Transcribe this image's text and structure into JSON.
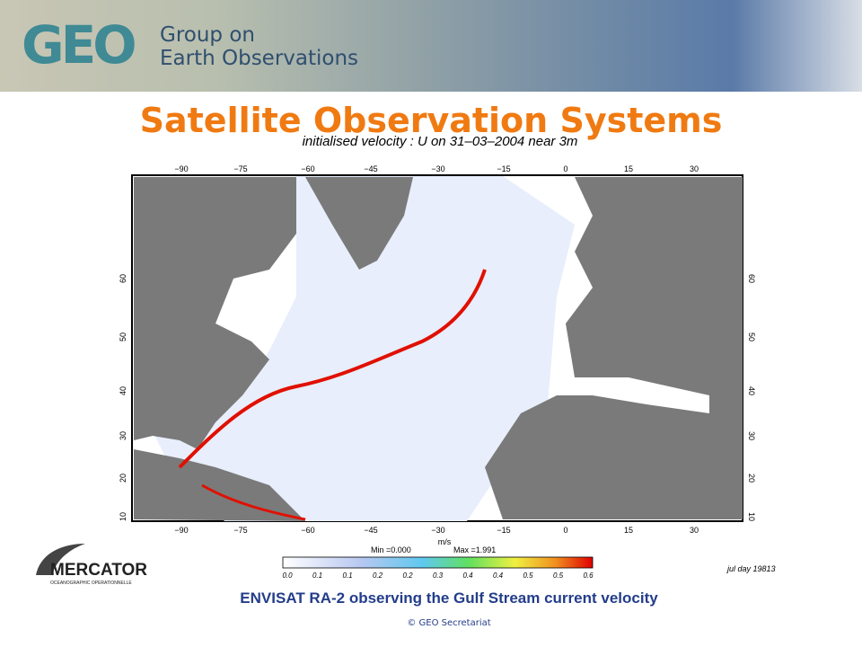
{
  "header": {
    "logo": "GEO",
    "org_line1": "Group on",
    "org_line2": "Earth Observations"
  },
  "title": "Satellite Observation Systems",
  "map": {
    "title": "initialised velocity : U on 31–03–2004 near 3m",
    "lon_labels": [
      "−90",
      "−75",
      "−60",
      "−45",
      "−30",
      "−15",
      "0",
      "15",
      "30"
    ],
    "lat_labels": [
      "60",
      "50",
      "40",
      "30",
      "20",
      "10"
    ],
    "colorbar": {
      "unit": "m/s",
      "min": "Min =0.000",
      "max": "Max =1.991",
      "labels": [
        "0.0",
        "0.1",
        "0.1",
        "0.2",
        "0.2",
        "0.3",
        "0.4",
        "0.4",
        "0.5",
        "0.5",
        "0.6"
      ]
    },
    "day": "jul day 19813"
  },
  "mercator": {
    "name": "MERCATOR",
    "tagline": "OCEANOGRAPHIC OPERATIONNELLE"
  },
  "caption": "ENVISAT RA-2 observing the Gulf Stream current velocity",
  "copyright": "© GEO Secretariat"
}
